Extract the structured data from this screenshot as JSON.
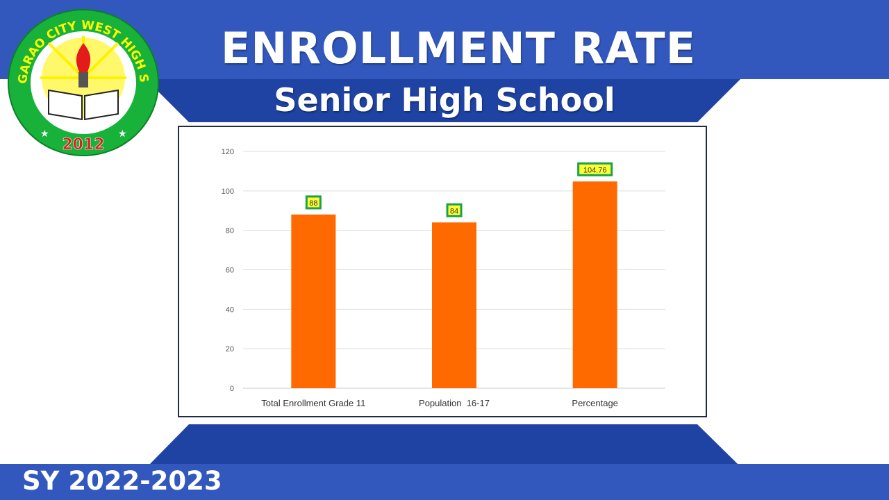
{
  "header": {
    "title": "ENROLLMENT RATE",
    "subtitle": "Senior High School"
  },
  "footer": {
    "school_year": "SY 2022-2023"
  },
  "logo": {
    "school_name": "TUGUEGARAO CITY WEST HIGH SCHOOL",
    "year": "2012"
  },
  "colors": {
    "banner_blue": "#3358bd",
    "banner_dark": "#1f43a3",
    "bar": "#ff6a00",
    "label_fill": "#ffff33",
    "label_border": "#17a34a",
    "gridline": "#dddddd"
  },
  "chart_data": {
    "type": "bar",
    "categories": [
      "Total Enrollment Grade 11",
      "Population  16-17",
      "Percentage"
    ],
    "values": [
      88,
      84,
      104.76
    ],
    "data_labels": [
      "88",
      "84",
      "104.76"
    ],
    "ylim": [
      0,
      120
    ],
    "yticks": [
      "0",
      "20",
      "40",
      "60",
      "80",
      "100",
      "120"
    ],
    "grid": true,
    "legend": "none"
  }
}
